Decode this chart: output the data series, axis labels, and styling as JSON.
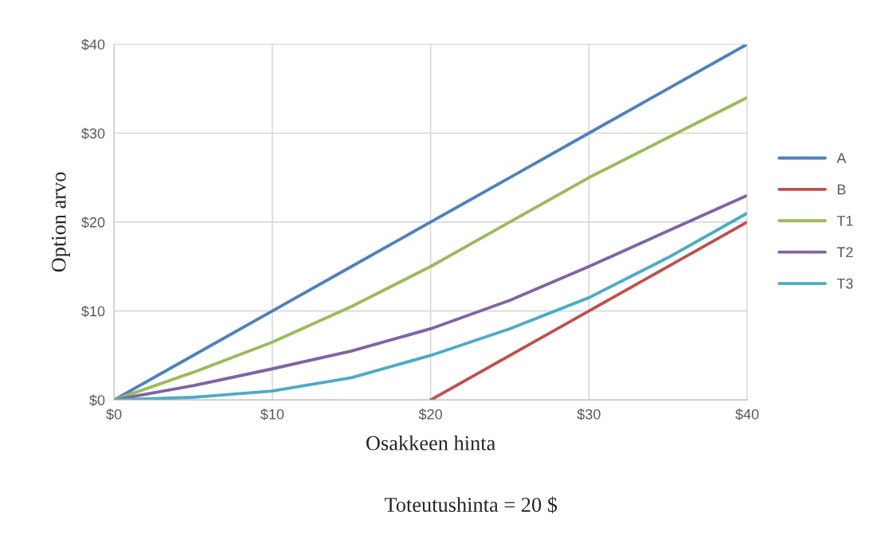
{
  "chart_data": {
    "type": "line",
    "xlabel": "Osakkeen hinta",
    "ylabel": "Option arvo",
    "annotations": [
      "Toteutushinta = 20 $"
    ],
    "x": [
      0,
      5,
      10,
      15,
      20,
      25,
      30,
      35,
      40
    ],
    "series": [
      {
        "name": "A",
        "color": "#4f81bd",
        "values": [
          0,
          5,
          10,
          15,
          20,
          25,
          30,
          35,
          40
        ]
      },
      {
        "name": "B",
        "color": "#c0504d",
        "x": [
          20,
          30,
          40
        ],
        "values": [
          0,
          10,
          20
        ]
      },
      {
        "name": "T1",
        "color": "#9bbb59",
        "values": [
          0,
          3.1,
          6.5,
          10.5,
          15,
          20,
          25,
          29.5,
          34
        ]
      },
      {
        "name": "T2",
        "color": "#8064a2",
        "values": [
          0,
          1.6,
          3.5,
          5.5,
          8,
          11.2,
          15,
          19,
          23
        ]
      },
      {
        "name": "T3",
        "color": "#4bacc6",
        "values": [
          0,
          0.3,
          1,
          2.5,
          5,
          8,
          11.5,
          16,
          21
        ]
      }
    ],
    "xlim": [
      0,
      40
    ],
    "ylim": [
      0,
      40
    ],
    "xticks": [
      {
        "value": 0,
        "label": "$0"
      },
      {
        "value": 10,
        "label": "$10"
      },
      {
        "value": 20,
        "label": "$20"
      },
      {
        "value": 30,
        "label": "$30"
      },
      {
        "value": 40,
        "label": "$40"
      }
    ],
    "yticks": [
      {
        "value": 0,
        "label": "$0"
      },
      {
        "value": 10,
        "label": "$10"
      },
      {
        "value": 20,
        "label": "$20"
      },
      {
        "value": 30,
        "label": "$30"
      },
      {
        "value": 40,
        "label": "$40"
      }
    ],
    "grid": true,
    "legend": "right",
    "line_style": "solid"
  }
}
